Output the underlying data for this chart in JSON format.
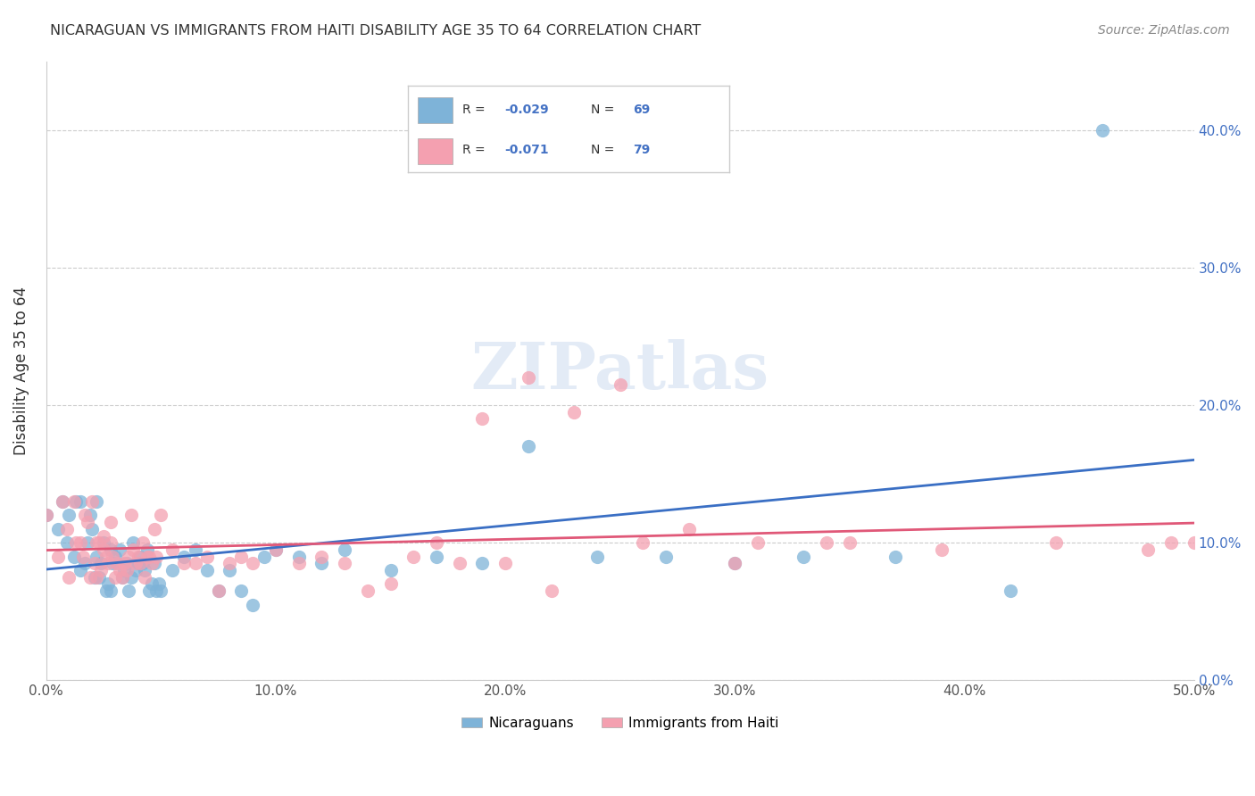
{
  "title": "NICARAGUAN VS IMMIGRANTS FROM HAITI DISABILITY AGE 35 TO 64 CORRELATION CHART",
  "source": "Source: ZipAtlas.com",
  "ylabel": "Disability Age 35 to 64",
  "xlim": [
    0.0,
    0.5
  ],
  "ylim": [
    0.0,
    0.45
  ],
  "xticks": [
    0.0,
    0.1,
    0.2,
    0.3,
    0.4,
    0.5
  ],
  "yticks": [
    0.0,
    0.1,
    0.2,
    0.3,
    0.4
  ],
  "blue_color": "#7eb3d8",
  "pink_color": "#f4a0b0",
  "blue_line_color": "#3a6fc4",
  "pink_line_color": "#e05878",
  "watermark": "ZIPatlas",
  "blue_R": "-0.029",
  "blue_N": "69",
  "pink_R": "-0.071",
  "pink_N": "79",
  "blue_scatter_x": [
    0.0,
    0.005,
    0.007,
    0.009,
    0.01,
    0.012,
    0.013,
    0.015,
    0.015,
    0.017,
    0.018,
    0.019,
    0.02,
    0.021,
    0.022,
    0.022,
    0.023,
    0.024,
    0.025,
    0.026,
    0.027,
    0.028,
    0.028,
    0.029,
    0.03,
    0.031,
    0.032,
    0.033,
    0.034,
    0.035,
    0.036,
    0.037,
    0.038,
    0.039,
    0.04,
    0.041,
    0.042,
    0.043,
    0.044,
    0.045,
    0.046,
    0.047,
    0.048,
    0.049,
    0.05,
    0.055,
    0.06,
    0.065,
    0.07,
    0.075,
    0.08,
    0.085,
    0.09,
    0.095,
    0.1,
    0.11,
    0.12,
    0.13,
    0.15,
    0.17,
    0.19,
    0.21,
    0.24,
    0.27,
    0.3,
    0.33,
    0.37,
    0.42,
    0.46
  ],
  "blue_scatter_y": [
    0.12,
    0.11,
    0.13,
    0.1,
    0.12,
    0.09,
    0.13,
    0.08,
    0.13,
    0.085,
    0.1,
    0.12,
    0.11,
    0.075,
    0.09,
    0.13,
    0.075,
    0.085,
    0.1,
    0.065,
    0.07,
    0.065,
    0.095,
    0.085,
    0.09,
    0.085,
    0.095,
    0.075,
    0.08,
    0.085,
    0.065,
    0.075,
    0.1,
    0.08,
    0.085,
    0.09,
    0.085,
    0.08,
    0.095,
    0.065,
    0.07,
    0.085,
    0.065,
    0.07,
    0.065,
    0.08,
    0.09,
    0.095,
    0.08,
    0.065,
    0.08,
    0.065,
    0.055,
    0.09,
    0.095,
    0.09,
    0.085,
    0.095,
    0.08,
    0.09,
    0.085,
    0.17,
    0.09,
    0.09,
    0.085,
    0.09,
    0.09,
    0.065,
    0.4
  ],
  "pink_scatter_x": [
    0.0,
    0.005,
    0.007,
    0.009,
    0.01,
    0.012,
    0.013,
    0.015,
    0.016,
    0.017,
    0.018,
    0.019,
    0.02,
    0.021,
    0.022,
    0.022,
    0.023,
    0.024,
    0.025,
    0.025,
    0.026,
    0.027,
    0.028,
    0.028,
    0.029,
    0.03,
    0.031,
    0.032,
    0.033,
    0.034,
    0.035,
    0.036,
    0.037,
    0.038,
    0.039,
    0.04,
    0.041,
    0.042,
    0.043,
    0.044,
    0.045,
    0.046,
    0.047,
    0.048,
    0.05,
    0.055,
    0.06,
    0.065,
    0.07,
    0.075,
    0.08,
    0.085,
    0.09,
    0.1,
    0.11,
    0.12,
    0.13,
    0.15,
    0.17,
    0.19,
    0.21,
    0.23,
    0.25,
    0.28,
    0.31,
    0.35,
    0.39,
    0.44,
    0.48,
    0.49,
    0.5,
    0.14,
    0.16,
    0.18,
    0.2,
    0.22,
    0.26,
    0.3,
    0.34
  ],
  "pink_scatter_y": [
    0.12,
    0.09,
    0.13,
    0.11,
    0.075,
    0.13,
    0.1,
    0.1,
    0.09,
    0.12,
    0.115,
    0.075,
    0.13,
    0.085,
    0.1,
    0.075,
    0.1,
    0.08,
    0.095,
    0.105,
    0.09,
    0.085,
    0.1,
    0.115,
    0.09,
    0.075,
    0.085,
    0.08,
    0.075,
    0.085,
    0.08,
    0.09,
    0.12,
    0.095,
    0.085,
    0.09,
    0.085,
    0.1,
    0.075,
    0.09,
    0.09,
    0.085,
    0.11,
    0.09,
    0.12,
    0.095,
    0.085,
    0.085,
    0.09,
    0.065,
    0.085,
    0.09,
    0.085,
    0.095,
    0.085,
    0.09,
    0.085,
    0.07,
    0.1,
    0.19,
    0.22,
    0.195,
    0.215,
    0.11,
    0.1,
    0.1,
    0.095,
    0.1,
    0.095,
    0.1,
    0.1,
    0.065,
    0.09,
    0.085,
    0.085,
    0.065,
    0.1,
    0.085,
    0.1
  ]
}
